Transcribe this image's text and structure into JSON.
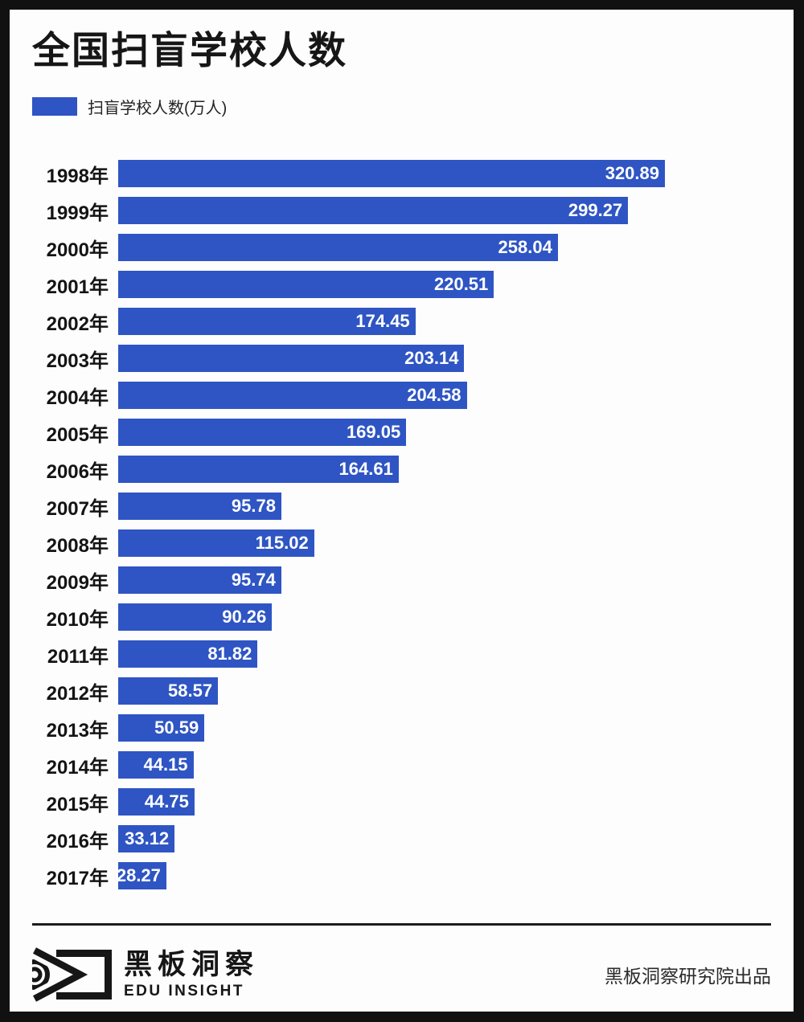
{
  "header": {
    "title": "全国扫盲学校人数"
  },
  "legend": {
    "label": "扫盲学校人数(万人)"
  },
  "chart_data": {
    "type": "bar",
    "orientation": "horizontal",
    "title": "全国扫盲学校人数",
    "legend_entries": [
      "扫盲学校人数(万人)"
    ],
    "unit": "万人",
    "categories": [
      "1998年",
      "1999年",
      "2000年",
      "2001年",
      "2002年",
      "2003年",
      "2004年",
      "2005年",
      "2006年",
      "2007年",
      "2008年",
      "2009年",
      "2010年",
      "2011年",
      "2012年",
      "2013年",
      "2014年",
      "2015年",
      "2016年",
      "2017年"
    ],
    "values": [
      320.89,
      299.27,
      258.04,
      220.51,
      174.45,
      203.14,
      204.58,
      169.05,
      164.61,
      95.78,
      115.02,
      95.74,
      90.26,
      81.82,
      58.57,
      50.59,
      44.15,
      44.75,
      33.12,
      28.27
    ],
    "max_value": 320.89,
    "value_labels_shown": true,
    "grid": false,
    "axis_shown": false
  },
  "footer": {
    "logo_cn": "黑板洞察",
    "logo_en": "EDU INSIGHT",
    "credit": "黑板洞察研究院出品"
  },
  "colors": {
    "bar_blue": "#2e55c3",
    "frame_black": "#111111",
    "background": "#fdfdfd",
    "value_text": "#ffffff"
  }
}
